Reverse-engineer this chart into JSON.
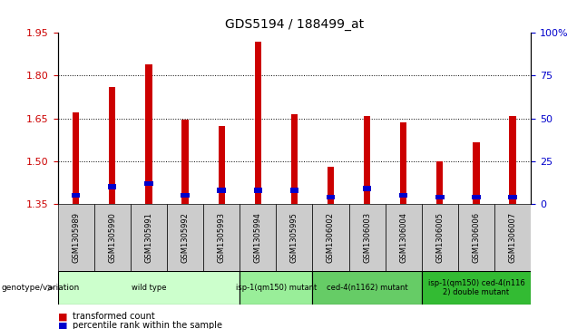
{
  "title": "GDS5194 / 188499_at",
  "samples": [
    "GSM1305989",
    "GSM1305990",
    "GSM1305991",
    "GSM1305992",
    "GSM1305993",
    "GSM1305994",
    "GSM1305995",
    "GSM1306002",
    "GSM1306003",
    "GSM1306004",
    "GSM1306005",
    "GSM1306006",
    "GSM1306007"
  ],
  "red_values": [
    1.67,
    1.76,
    1.84,
    1.645,
    1.625,
    1.92,
    1.665,
    1.48,
    1.66,
    1.635,
    1.5,
    1.565,
    1.66
  ],
  "blue_pct": [
    5,
    10,
    12,
    5,
    8,
    8,
    8,
    4,
    9,
    5,
    4,
    4,
    4
  ],
  "ylim_left": [
    1.35,
    1.95
  ],
  "ylim_right": [
    0,
    100
  ],
  "yticks_left": [
    1.35,
    1.5,
    1.65,
    1.8,
    1.95
  ],
  "yticks_right": [
    0,
    25,
    50,
    75,
    100
  ],
  "ytick_right_labels": [
    "0",
    "25",
    "50",
    "75",
    "100%"
  ],
  "bar_bottom": 1.35,
  "groups": [
    {
      "label": "wild type",
      "indices": [
        0,
        1,
        2,
        3,
        4
      ],
      "color": "#ccffcc"
    },
    {
      "label": "isp-1(qm150) mutant",
      "indices": [
        5,
        6
      ],
      "color": "#99ee99"
    },
    {
      "label": "ced-4(n1162) mutant",
      "indices": [
        7,
        8,
        9
      ],
      "color": "#66cc66"
    },
    {
      "label": "isp-1(qm150) ced-4(n116\n2) double mutant",
      "indices": [
        10,
        11,
        12
      ],
      "color": "#33bb33"
    }
  ],
  "genotype_label": "genotype/variation",
  "legend_red": "transformed count",
  "legend_blue": "percentile rank within the sample",
  "red_color": "#cc0000",
  "blue_color": "#0000cc",
  "grid_color": "#000000",
  "bg_color": "#ffffff",
  "sample_bg_color": "#cccccc",
  "bar_width": 0.18
}
